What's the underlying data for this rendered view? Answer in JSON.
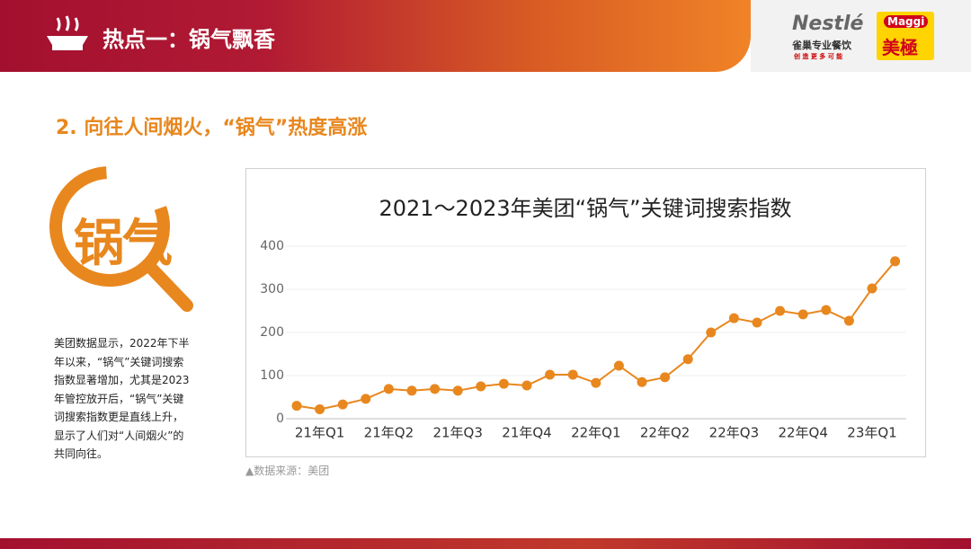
{
  "header": {
    "title": "热点一：锅气飘香"
  },
  "logos": {
    "brand1": "Nestlé",
    "brand1_sub": "雀巢专业餐饮",
    "brand1_slogan": "创 造 更 多 可 能",
    "brand2": "Maggi",
    "brand2_cn": "美極"
  },
  "section": {
    "title": "2. 向往人间烟火，“锅气”热度高涨",
    "icon_text": "锅气",
    "description": "美团数据显示，2022年下半年以来，“锅气”关键词搜索指数显著增加，尤其是2023年管控放开后，“锅气”关键词搜索指数更是直线上升，显示了人们对“人间烟火”的共同向往。"
  },
  "source": "▲数据来源：美团",
  "chart_data": {
    "type": "line",
    "title": "2021～2023年美团“锅气”关键词搜索指数",
    "categories": [
      null,
      "21年Q1",
      null,
      null,
      "21年Q2",
      null,
      null,
      "21年Q3",
      null,
      null,
      "21年Q4",
      null,
      null,
      "22年Q1",
      null,
      null,
      "22年Q2",
      null,
      null,
      "22年Q3",
      null,
      null,
      "22年Q4",
      null,
      null,
      "23年Q1",
      null
    ],
    "series": [
      {
        "name": "锅气",
        "color": "#e8871e",
        "values": [
          30,
          22,
          33,
          46,
          69,
          65,
          69,
          65,
          75,
          81,
          77,
          102,
          102,
          83,
          123,
          85,
          96,
          138,
          200,
          233,
          223,
          250,
          242,
          252,
          227,
          302,
          365
        ]
      }
    ],
    "ylim": [
      0,
      400
    ],
    "yticks": [
      0,
      100,
      200,
      300,
      400
    ],
    "grid": true
  }
}
